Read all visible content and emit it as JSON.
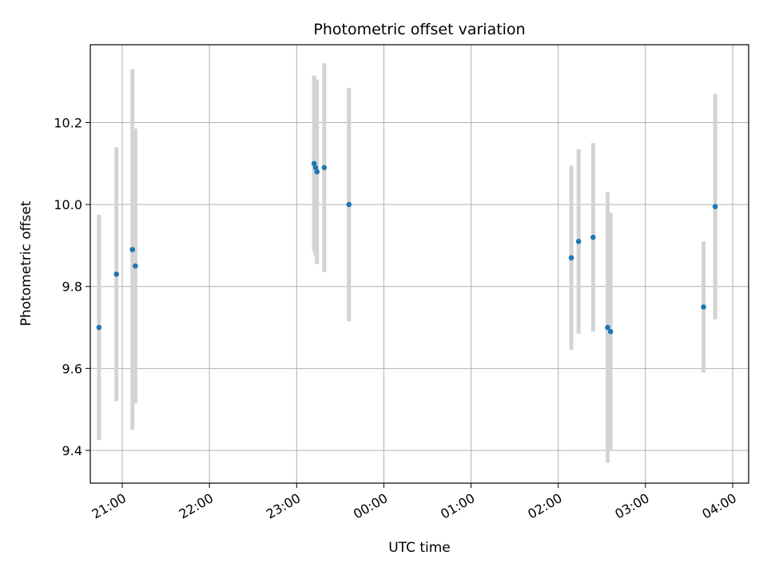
{
  "chart_data": {
    "type": "scatter",
    "title": "Photometric offset variation",
    "xlabel": "UTC time",
    "ylabel": "Photometric offset",
    "x_axis": {
      "type": "time",
      "ticks": [
        "21:00",
        "22:00",
        "23:00",
        "00:00",
        "01:00",
        "02:00",
        "03:00",
        "04:00"
      ],
      "range": [
        "20:38",
        "04:11"
      ]
    },
    "y_axis": {
      "ticks": [
        9.4,
        9.6,
        9.8,
        10.0,
        10.2
      ],
      "tick_labels": [
        "9.4",
        "9.6",
        "9.8",
        "10.0",
        "10.2"
      ],
      "range": [
        9.32,
        10.39
      ]
    },
    "grid": true,
    "colors": {
      "point": "#1f77b4",
      "errorbar": "#d3d3d3",
      "grid": "#b0b0b0"
    },
    "points": [
      {
        "time": "20:44",
        "y": 9.7,
        "err": 0.275
      },
      {
        "time": "20:56",
        "y": 9.83,
        "err": 0.31
      },
      {
        "time": "21:07",
        "y": 9.89,
        "err": 0.44
      },
      {
        "time": "21:09",
        "y": 9.85,
        "err": 0.335
      },
      {
        "time": "23:12",
        "y": 10.1,
        "err": 0.215
      },
      {
        "time": "23:13",
        "y": 10.09,
        "err": 0.215
      },
      {
        "time": "23:14",
        "y": 10.08,
        "err": 0.225
      },
      {
        "time": "23:19",
        "y": 10.09,
        "err": 0.255
      },
      {
        "time": "23:36",
        "y": 10.0,
        "err": 0.285
      },
      {
        "time": "02:09",
        "y": 9.87,
        "err": 0.225
      },
      {
        "time": "02:14",
        "y": 9.91,
        "err": 0.225
      },
      {
        "time": "02:24",
        "y": 9.92,
        "err": 0.23
      },
      {
        "time": "02:34",
        "y": 9.7,
        "err": 0.33
      },
      {
        "time": "02:36",
        "y": 9.69,
        "err": 0.29
      },
      {
        "time": "03:40",
        "y": 9.75,
        "err": 0.16
      },
      {
        "time": "03:48",
        "y": 9.995,
        "err": 0.275
      }
    ]
  }
}
